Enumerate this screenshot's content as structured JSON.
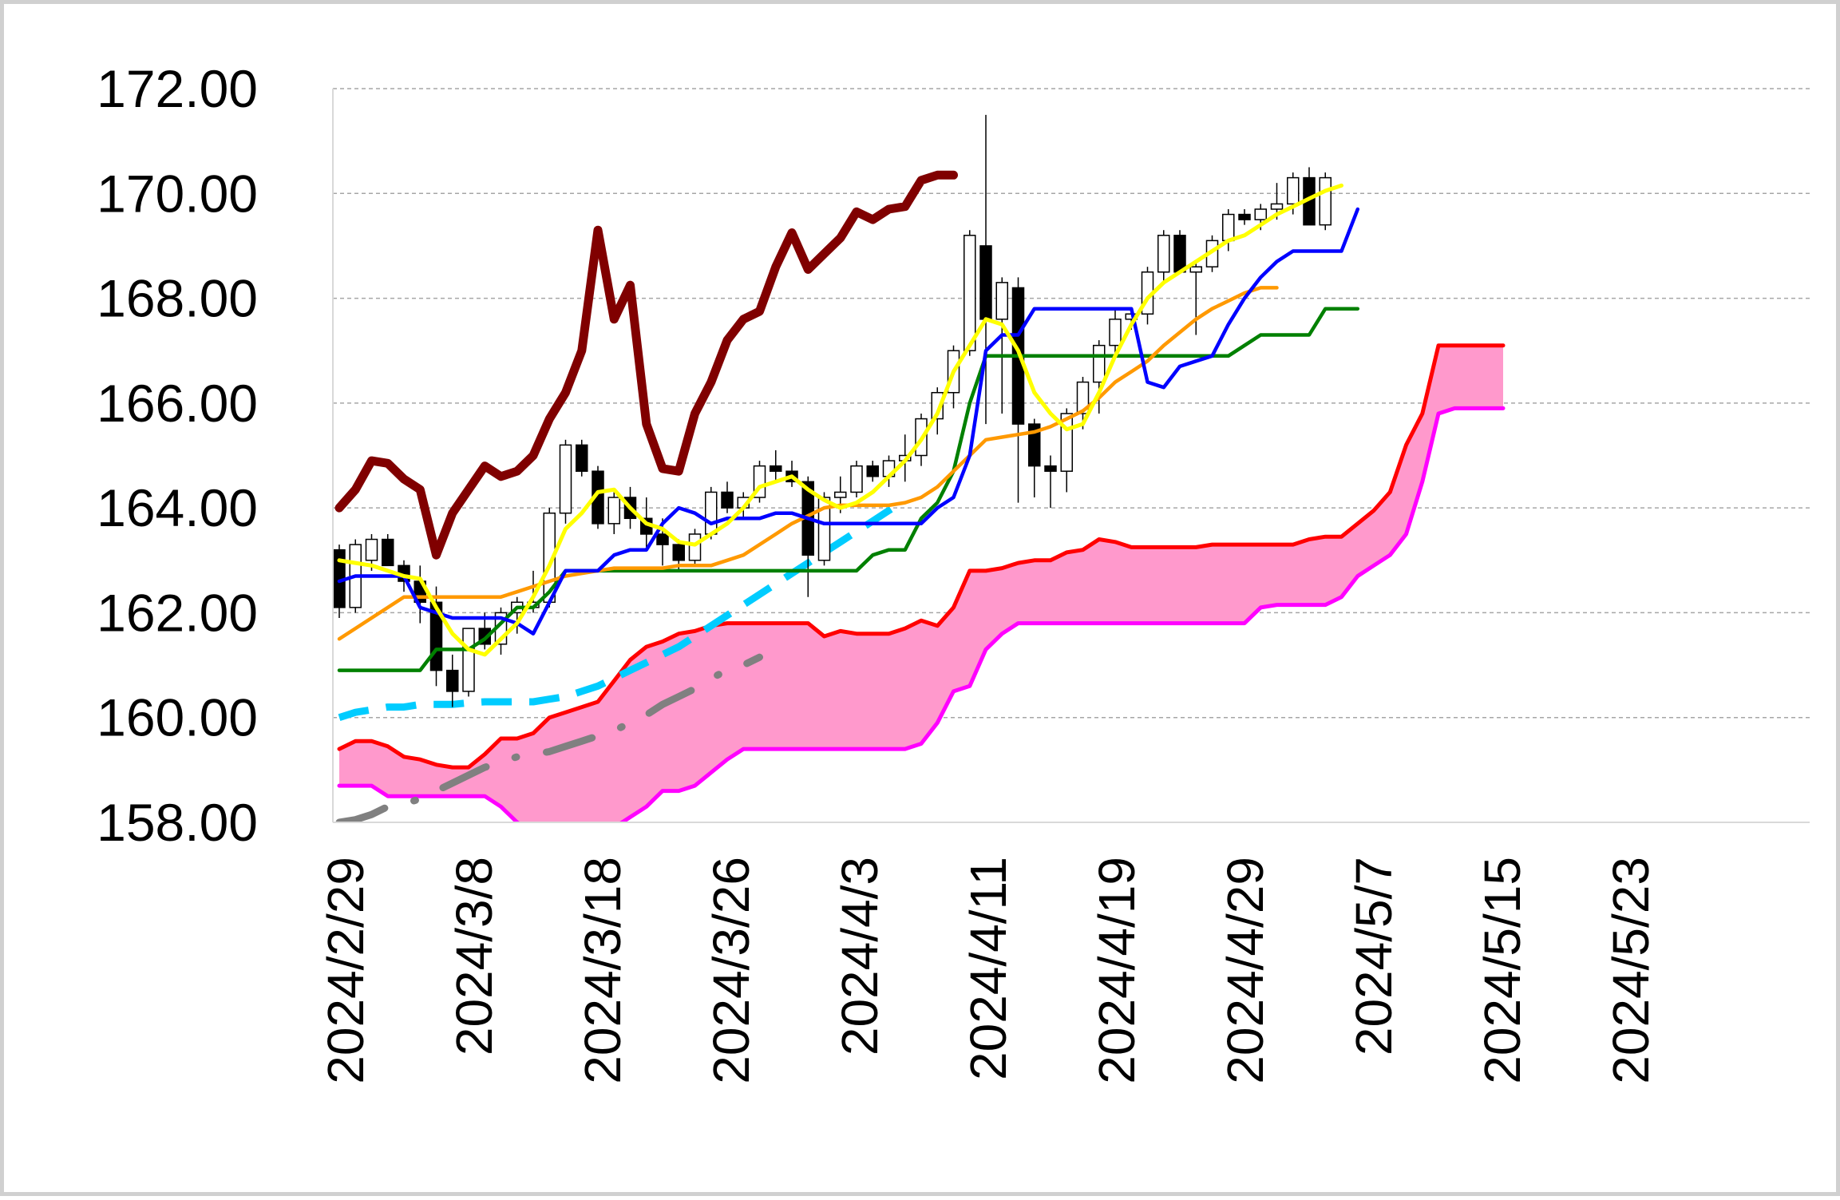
{
  "chart_data": {
    "type": "candlestick",
    "title": "",
    "xlabel": "",
    "ylabel": "",
    "ylim": [
      158,
      172
    ],
    "y_ticks": [
      "172.00",
      "170.00",
      "168.00",
      "166.00",
      "164.00",
      "162.00",
      "160.00",
      "158.00"
    ],
    "x_tick_labels": [
      "2024/2/29",
      "2024/3/8",
      "2024/3/18",
      "2024/3/26",
      "2024/4/3",
      "2024/4/11",
      "2024/4/19",
      "2024/4/29",
      "2024/5/7",
      "2024/5/15",
      "2024/5/23"
    ],
    "grid": "horizontal-dashed",
    "colors": {
      "up_candle": "#ffffff",
      "down_candle": "#000000",
      "cloud_fill": "#ff99cc",
      "senkou_a": "#ff0000",
      "senkou_b": "#ff00ff",
      "chikou": "#800000",
      "tenkan": "#0000ff",
      "kijun": "#008000",
      "ma_short": "#ffff00",
      "ma_mid": "#ff9900",
      "ma_long": "#00ccff",
      "ma_xlong": "#808080"
    },
    "candles": [
      [
        163.2,
        163.3,
        161.9,
        162.1
      ],
      [
        162.1,
        163.4,
        162.0,
        163.3
      ],
      [
        163.0,
        163.5,
        162.8,
        163.4
      ],
      [
        163.4,
        163.5,
        162.9,
        162.9
      ],
      [
        162.9,
        163.0,
        162.4,
        162.6
      ],
      [
        162.6,
        162.9,
        161.8,
        162.2
      ],
      [
        162.2,
        162.5,
        160.6,
        160.9
      ],
      [
        160.9,
        161.2,
        160.2,
        160.5
      ],
      [
        160.5,
        161.7,
        160.4,
        161.7
      ],
      [
        161.7,
        162.0,
        161.3,
        161.4
      ],
      [
        161.4,
        162.1,
        161.2,
        162.0
      ],
      [
        162.0,
        162.3,
        161.6,
        162.2
      ],
      [
        162.1,
        162.8,
        162.0,
        162.2
      ],
      [
        162.2,
        164.0,
        162.1,
        163.9
      ],
      [
        163.9,
        165.3,
        163.7,
        165.2
      ],
      [
        165.2,
        165.3,
        164.6,
        164.7
      ],
      [
        164.7,
        164.8,
        163.6,
        163.7
      ],
      [
        163.7,
        164.3,
        163.5,
        164.2
      ],
      [
        164.2,
        164.4,
        163.6,
        163.8
      ],
      [
        163.8,
        164.2,
        163.2,
        163.5
      ],
      [
        163.5,
        163.8,
        162.9,
        163.3
      ],
      [
        163.3,
        163.4,
        162.8,
        163.0
      ],
      [
        163.0,
        163.6,
        162.9,
        163.5
      ],
      [
        163.5,
        164.4,
        163.4,
        164.3
      ],
      [
        164.3,
        164.5,
        163.9,
        164.0
      ],
      [
        164.0,
        164.3,
        163.8,
        164.2
      ],
      [
        164.2,
        164.9,
        164.1,
        164.8
      ],
      [
        164.8,
        165.1,
        164.5,
        164.7
      ],
      [
        164.7,
        164.9,
        164.4,
        164.5
      ],
      [
        164.5,
        164.6,
        162.3,
        163.1
      ],
      [
        163.0,
        164.3,
        162.9,
        164.2
      ],
      [
        164.2,
        164.6,
        163.9,
        164.3
      ],
      [
        164.3,
        164.9,
        164.2,
        164.8
      ],
      [
        164.8,
        164.9,
        164.5,
        164.6
      ],
      [
        164.6,
        165.0,
        164.4,
        164.9
      ],
      [
        164.9,
        165.4,
        164.5,
        165.0
      ],
      [
        165.0,
        165.8,
        164.8,
        165.7
      ],
      [
        165.7,
        166.3,
        165.4,
        166.2
      ],
      [
        166.2,
        167.1,
        165.9,
        167.0
      ],
      [
        167.0,
        169.3,
        166.9,
        169.2
      ],
      [
        169.0,
        171.5,
        165.6,
        167.6
      ],
      [
        167.6,
        168.4,
        165.8,
        168.3
      ],
      [
        168.2,
        168.4,
        164.1,
        165.6
      ],
      [
        165.6,
        165.7,
        164.2,
        164.8
      ],
      [
        164.8,
        165.0,
        164.0,
        164.7
      ],
      [
        164.7,
        165.9,
        164.3,
        165.8
      ],
      [
        165.8,
        166.5,
        165.5,
        166.4
      ],
      [
        166.4,
        167.2,
        165.8,
        167.1
      ],
      [
        167.1,
        167.8,
        166.9,
        167.6
      ],
      [
        167.6,
        167.8,
        167.4,
        167.7
      ],
      [
        167.7,
        168.6,
        167.5,
        168.5
      ],
      [
        168.5,
        169.3,
        168.3,
        169.2
      ],
      [
        169.2,
        169.3,
        168.5,
        168.5
      ],
      [
        168.5,
        168.7,
        167.3,
        168.6
      ],
      [
        168.6,
        169.2,
        168.5,
        169.1
      ],
      [
        169.1,
        169.7,
        168.9,
        169.6
      ],
      [
        169.6,
        169.7,
        169.4,
        169.5
      ],
      [
        169.5,
        169.8,
        169.3,
        169.7
      ],
      [
        169.7,
        170.2,
        169.5,
        169.8
      ],
      [
        169.8,
        170.4,
        169.6,
        170.3
      ],
      [
        170.3,
        170.5,
        169.4,
        169.4
      ],
      [
        169.4,
        170.4,
        169.3,
        170.3
      ]
    ],
    "series": [
      {
        "key": "tenkan",
        "values": [
          162.6,
          162.7,
          162.7,
          162.7,
          162.7,
          162.1,
          162.0,
          161.9,
          161.9,
          161.9,
          161.9,
          161.8,
          161.6,
          162.2,
          162.8,
          162.8,
          162.8,
          163.1,
          163.2,
          163.2,
          163.7,
          164.0,
          163.9,
          163.7,
          163.8,
          163.8,
          163.8,
          163.9,
          163.9,
          163.8,
          163.7,
          163.7,
          163.7,
          163.7,
          163.7,
          163.7,
          163.7,
          164.0,
          164.2,
          165.0,
          167.0,
          167.3,
          167.3,
          167.8,
          167.8,
          167.8,
          167.8,
          167.8,
          167.8,
          167.8,
          166.4,
          166.3,
          166.7,
          166.8,
          166.9,
          167.5,
          168.0,
          168.4,
          168.7,
          168.9,
          168.9,
          168.9,
          168.9,
          169.7
        ]
      },
      {
        "key": "kijun",
        "values": [
          160.9,
          160.9,
          160.9,
          160.9,
          160.9,
          160.9,
          161.3,
          161.3,
          161.3,
          161.5,
          161.8,
          162.1,
          162.1,
          162.4,
          162.8,
          162.8,
          162.8,
          162.8,
          162.8,
          162.8,
          162.8,
          162.8,
          162.8,
          162.8,
          162.8,
          162.8,
          162.8,
          162.8,
          162.8,
          162.8,
          162.8,
          162.8,
          162.8,
          163.1,
          163.2,
          163.2,
          163.8,
          164.1,
          164.7,
          166.0,
          166.9,
          166.9,
          166.9,
          166.9,
          166.9,
          166.9,
          166.9,
          166.9,
          166.9,
          166.9,
          166.9,
          166.9,
          166.9,
          166.9,
          166.9,
          166.9,
          167.1,
          167.3,
          167.3,
          167.3,
          167.3,
          167.8,
          167.8,
          167.8
        ]
      },
      {
        "key": "ma_short",
        "values": [
          163.0,
          162.95,
          162.9,
          162.8,
          162.7,
          162.65,
          162.1,
          161.6,
          161.3,
          161.2,
          161.5,
          161.8,
          162.3,
          162.9,
          163.6,
          163.9,
          164.3,
          164.35,
          164.0,
          163.7,
          163.6,
          163.35,
          163.3,
          163.5,
          163.7,
          164.0,
          164.4,
          164.5,
          164.6,
          164.35,
          164.15,
          164.0,
          164.1,
          164.3,
          164.6,
          164.9,
          165.3,
          165.8,
          166.6,
          167.1,
          167.6,
          167.5,
          167.0,
          166.2,
          165.8,
          165.5,
          165.6,
          166.2,
          166.9,
          167.5,
          168.0,
          168.3,
          168.5,
          168.7,
          168.9,
          169.1,
          169.2,
          169.4,
          169.6,
          169.75,
          169.9,
          170.05,
          170.15
        ]
      },
      {
        "key": "ma_mid",
        "values": [
          161.5,
          161.7,
          161.9,
          162.1,
          162.3,
          162.3,
          162.3,
          162.3,
          162.3,
          162.3,
          162.3,
          162.4,
          162.5,
          162.6,
          162.7,
          162.75,
          162.8,
          162.85,
          162.85,
          162.85,
          162.85,
          162.9,
          162.9,
          162.9,
          163.0,
          163.1,
          163.3,
          163.5,
          163.7,
          163.85,
          164.0,
          164.05,
          164.05,
          164.05,
          164.05,
          164.1,
          164.2,
          164.4,
          164.7,
          165.0,
          165.3,
          165.35,
          165.4,
          165.45,
          165.55,
          165.7,
          165.85,
          166.1,
          166.4,
          166.6,
          166.8,
          167.1,
          167.35,
          167.6,
          167.8,
          167.95,
          168.1,
          168.2,
          168.2
        ]
      },
      {
        "key": "ma_long",
        "values": [
          160.0,
          160.1,
          160.15,
          160.2,
          160.2,
          160.25,
          160.25,
          160.25,
          160.28,
          160.3,
          160.3,
          160.3,
          160.3,
          160.35,
          160.4,
          160.5,
          160.6,
          160.75,
          160.9,
          161.05,
          161.2,
          161.35,
          161.55,
          161.75,
          161.95,
          162.15,
          162.35,
          162.55,
          162.75,
          162.95,
          163.15,
          163.35,
          163.55,
          163.75,
          163.95,
          164.15
        ]
      },
      {
        "key": "ma_xlong",
        "values": [
          158.0,
          158.05,
          158.15,
          158.3,
          158.35,
          158.45,
          158.6,
          158.75,
          158.9,
          159.05,
          159.15,
          159.25,
          159.3,
          159.35,
          159.45,
          159.55,
          159.65,
          159.75,
          159.9,
          160.05,
          160.25,
          160.4,
          160.55,
          160.75,
          160.9,
          161.0,
          161.15
        ]
      },
      {
        "key": "chikou",
        "values": [
          164.0,
          164.35,
          164.9,
          164.85,
          164.55,
          164.35,
          163.1,
          163.9,
          164.35,
          164.8,
          164.6,
          164.7,
          165.0,
          165.7,
          166.2,
          167.0,
          169.3,
          167.6,
          168.25,
          165.6,
          164.75,
          164.7,
          165.8,
          166.4,
          167.2,
          167.6,
          167.75,
          168.6,
          169.25,
          168.55,
          168.85,
          169.15,
          169.65,
          169.5,
          169.7,
          169.75,
          170.25,
          170.35,
          170.35
        ]
      },
      {
        "key": "senkou_a",
        "values": [
          159.4,
          159.55,
          159.55,
          159.45,
          159.25,
          159.2,
          159.1,
          159.05,
          159.05,
          159.3,
          159.6,
          159.6,
          159.7,
          160.0,
          160.1,
          160.2,
          160.3,
          160.7,
          161.1,
          161.35,
          161.45,
          161.6,
          161.65,
          161.75,
          161.8,
          161.8,
          161.8,
          161.8,
          161.8,
          161.8,
          161.55,
          161.65,
          161.6,
          161.6,
          161.6,
          161.7,
          161.85,
          161.75,
          162.1,
          162.8,
          162.8,
          162.85,
          162.95,
          163.0,
          163.0,
          163.15,
          163.2,
          163.4,
          163.35,
          163.25,
          163.25,
          163.25,
          163.25,
          163.25,
          163.3,
          163.3,
          163.3,
          163.3,
          163.3,
          163.3,
          163.4,
          163.45,
          163.45,
          163.7,
          163.95,
          164.3,
          165.2,
          165.8,
          167.1,
          167.1,
          167.1,
          167.1,
          167.1
        ]
      },
      {
        "key": "senkou_b",
        "values": [
          158.7,
          158.7,
          158.7,
          158.5,
          158.5,
          158.5,
          158.5,
          158.5,
          158.5,
          158.5,
          158.3,
          158.0,
          157.8,
          157.8,
          157.8,
          157.8,
          157.8,
          157.9,
          158.1,
          158.3,
          158.6,
          158.6,
          158.7,
          158.95,
          159.2,
          159.4,
          159.4,
          159.4,
          159.4,
          159.4,
          159.4,
          159.4,
          159.4,
          159.4,
          159.4,
          159.4,
          159.5,
          159.9,
          160.5,
          160.6,
          161.3,
          161.6,
          161.8,
          161.8,
          161.8,
          161.8,
          161.8,
          161.8,
          161.8,
          161.8,
          161.8,
          161.8,
          161.8,
          161.8,
          161.8,
          161.8,
          161.8,
          162.1,
          162.15,
          162.15,
          162.15,
          162.15,
          162.3,
          162.7,
          162.9,
          163.1,
          163.5,
          164.5,
          165.8,
          165.9,
          165.9,
          165.9,
          165.9
        ]
      }
    ]
  }
}
